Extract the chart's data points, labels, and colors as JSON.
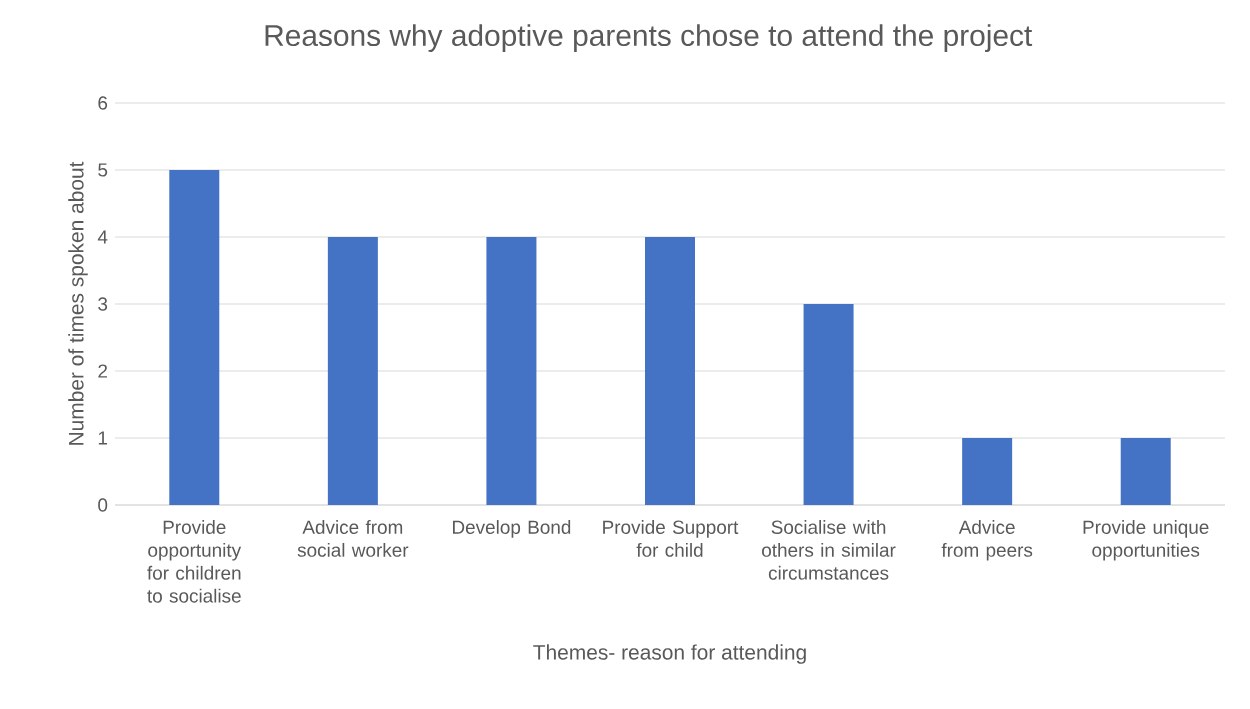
{
  "chart_data": {
    "type": "bar",
    "title": "Reasons why adoptive parents chose to attend the project",
    "xlabel": "Themes- reason for attending",
    "ylabel": "Number of times spoken about",
    "categories": [
      "Provide opportunity for children to socialise",
      "Advice from social worker",
      "Develop Bond",
      "Provide Support for child",
      "Socialise with others in similar circumstances",
      "Advice from peers",
      "Provide unique opportunities"
    ],
    "values": [
      5,
      4,
      4,
      4,
      3,
      1,
      1
    ],
    "color": "#4472c4",
    "ylim": [
      0,
      6
    ],
    "yticks": [
      0,
      1,
      2,
      3,
      4,
      5,
      6
    ],
    "grid": "y"
  }
}
